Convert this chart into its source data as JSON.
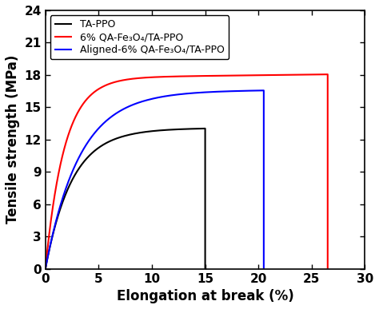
{
  "title": "",
  "xlabel": "Elongation at break (%)",
  "ylabel": "Tensile strength (MPa)",
  "xlim": [
    0,
    30
  ],
  "ylim": [
    0,
    24
  ],
  "xticks": [
    0,
    5,
    10,
    15,
    20,
    25,
    30
  ],
  "yticks": [
    0,
    3,
    6,
    9,
    12,
    15,
    18,
    21,
    24
  ],
  "curves": [
    {
      "label": "TA-PPO",
      "color": "#000000",
      "x_break": 15.0,
      "y_plateau": 13.0,
      "rise_tau": 2.5,
      "plateau_slope": 0.008,
      "plateau_max_add": 0.2
    },
    {
      "label": "6% QA-Fe₃O₄/TA-PPO",
      "color": "#ff0000",
      "x_break": 26.5,
      "y_plateau": 17.8,
      "rise_tau": 1.8,
      "plateau_slope": 0.012,
      "plateau_max_add": 0.4
    },
    {
      "label": "Aligned-6% QA-Fe₃O₄/TA-PPO",
      "color": "#0000ff",
      "x_break": 20.5,
      "y_plateau": 16.5,
      "rise_tau": 3.2,
      "plateau_slope": 0.008,
      "plateau_max_add": 0.3
    }
  ],
  "legend_loc": "upper left",
  "line_width": 1.5,
  "background_color": "#ffffff",
  "axis_color": "#000000",
  "font_size_label": 12,
  "font_size_tick": 11,
  "font_size_legend": 9
}
